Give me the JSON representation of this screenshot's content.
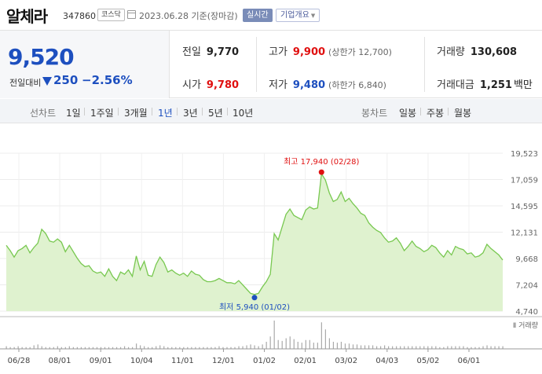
{
  "header": {
    "name": "알체라",
    "code": "347860",
    "market": "코스닥",
    "date_text": "2023.06.28 기준(장마감)",
    "realtime_label": "실시간",
    "company_label": "기업개요"
  },
  "summary": {
    "price": "9,520",
    "diff_label": "전일대비",
    "diff_value": "250",
    "diff_pct": "−2.56%",
    "prev_close_label": "전일",
    "prev_close": "9,770",
    "open_label": "시가",
    "open": "9,780",
    "high_label": "고가",
    "high": "9,900",
    "upper_limit": "(상한가 12,700)",
    "low_label": "저가",
    "low": "9,480",
    "lower_limit": "(하한가 6,840)",
    "volume_label": "거래량",
    "volume": "130,608",
    "amount_label": "거래대금",
    "amount": "1,251",
    "amount_unit": "백만"
  },
  "tabs": {
    "line_label": "선차트",
    "periods": [
      "1일",
      "1주일",
      "3개월",
      "1년",
      "3년",
      "5년",
      "10년"
    ],
    "active_period": "1년",
    "candle_label": "봉차트",
    "candles": [
      "일봉",
      "주봉",
      "월봉"
    ]
  },
  "chart_data": {
    "type": "area",
    "y_ticks": [
      "19,523",
      "17,059",
      "14,595",
      "12,131",
      "9,668",
      "7,204",
      "4,740"
    ],
    "ylim": [
      4740,
      19523
    ],
    "x_ticks": [
      "06/28",
      "08/01",
      "09/01",
      "10/04",
      "11/01",
      "12/01",
      "01/02",
      "02/01",
      "03/02",
      "04/03",
      "05/02",
      "06/01"
    ],
    "high_label": "최고 17,940 (02/28)",
    "low_label": "최저 5,940 (01/02)",
    "volume_label": "거래량",
    "grid": true,
    "line_color": "#78c850",
    "fill_color": "#dff2cf",
    "values": [
      10900,
      10400,
      9800,
      10400,
      10600,
      10900,
      10200,
      10700,
      11100,
      12400,
      12000,
      11300,
      11200,
      11500,
      11200,
      10300,
      10900,
      10300,
      9700,
      9200,
      8900,
      9000,
      8500,
      8300,
      8400,
      8000,
      8700,
      8000,
      7600,
      8400,
      8200,
      8600,
      8000,
      9900,
      8600,
      9400,
      8100,
      8000,
      9100,
      9800,
      9300,
      8400,
      8600,
      8300,
      8100,
      8300,
      8000,
      8500,
      8200,
      8100,
      7700,
      7500,
      7500,
      7600,
      7800,
      7600,
      7400,
      7400,
      7300,
      7600,
      7200,
      6800,
      6400,
      6300,
      6400,
      7000,
      7500,
      8200,
      12000,
      11400,
      12600,
      13800,
      14300,
      13700,
      13500,
      13300,
      14200,
      14500,
      14300,
      14400,
      17600,
      17000,
      15800,
      15000,
      15200,
      15900,
      15000,
      15300,
      14800,
      14400,
      13900,
      13700,
      13000,
      12600,
      12300,
      12100,
      11600,
      11200,
      11300,
      11600,
      11100,
      10400,
      10800,
      11300,
      10800,
      10600,
      10300,
      10500,
      10900,
      10700,
      10200,
      9800,
      10400,
      10000,
      10800,
      10600,
      10500,
      10100,
      10200,
      9800,
      9900,
      10200,
      11000,
      10600,
      10300,
      10000,
      9520
    ],
    "volume": [
      3,
      2,
      2,
      3,
      2,
      2,
      2,
      4,
      5,
      3,
      2,
      2,
      2,
      3,
      2,
      2,
      3,
      2,
      2,
      2,
      2,
      2,
      2,
      2,
      2,
      2,
      2,
      2,
      2,
      2,
      3,
      2,
      2,
      6,
      4,
      3,
      2,
      2,
      3,
      4,
      3,
      2,
      2,
      2,
      2,
      2,
      2,
      2,
      2,
      2,
      2,
      2,
      2,
      2,
      3,
      2,
      2,
      2,
      2,
      3,
      3,
      4,
      5,
      4,
      3,
      5,
      8,
      14,
      32,
      10,
      9,
      12,
      14,
      11,
      8,
      7,
      10,
      10,
      7,
      7,
      30,
      22,
      12,
      8,
      7,
      8,
      6,
      6,
      5,
      5,
      4,
      4,
      4,
      4,
      3,
      3,
      4,
      3,
      3,
      3,
      3,
      3,
      3,
      3,
      3,
      3,
      3,
      3,
      3,
      3,
      2,
      2,
      3,
      3,
      3,
      3,
      3,
      2,
      2,
      2,
      2,
      3,
      4,
      3,
      3,
      3,
      3
    ]
  }
}
